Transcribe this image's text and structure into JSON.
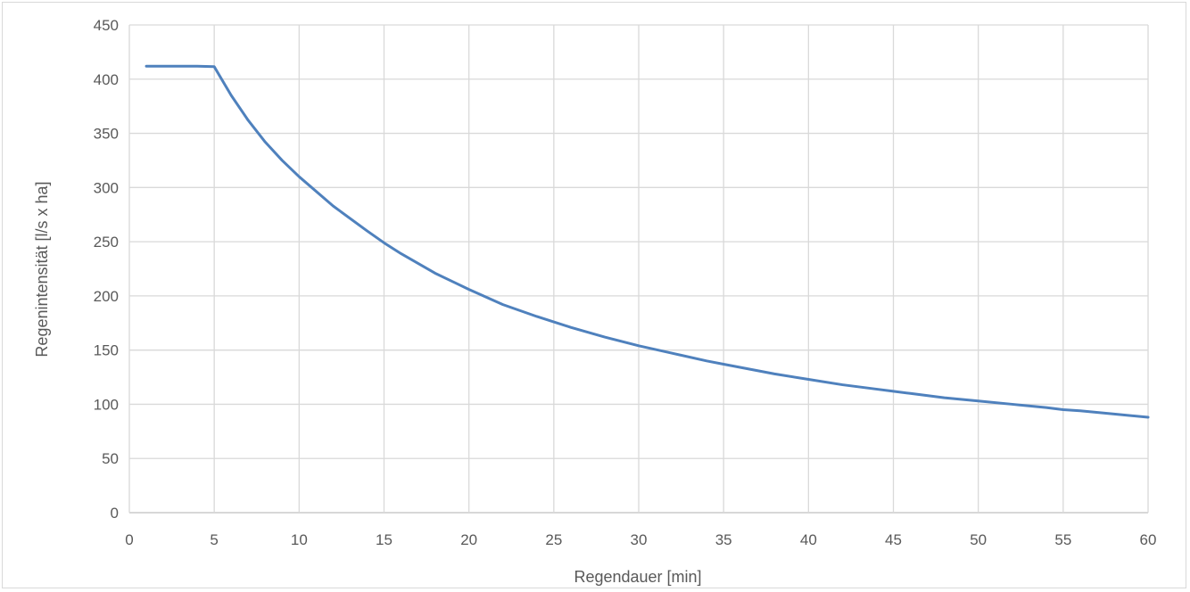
{
  "chart_data": {
    "type": "line",
    "title": "",
    "xlabel": "Regendauer [min]",
    "ylabel": "Regenintensität [l/s x ha]",
    "xlim": [
      0,
      60
    ],
    "ylim": [
      0,
      450
    ],
    "x_ticks": [
      0,
      5,
      10,
      15,
      20,
      25,
      30,
      35,
      40,
      45,
      50,
      55,
      60
    ],
    "y_ticks": [
      0,
      50,
      100,
      150,
      200,
      250,
      300,
      350,
      400,
      450
    ],
    "grid": true,
    "legend": "none",
    "series": [
      {
        "color": "#4f81bd",
        "x": [
          1,
          2,
          3,
          4,
          5,
          6,
          7,
          8,
          9,
          10,
          12,
          14,
          15,
          16,
          18,
          20,
          22,
          24,
          25,
          26,
          28,
          30,
          32,
          34,
          35,
          36,
          38,
          40,
          42,
          44,
          45,
          46,
          48,
          50,
          52,
          54,
          55,
          56,
          58,
          60
        ],
        "y": [
          412,
          412,
          412,
          412,
          411.5,
          385,
          362,
          342,
          325,
          310,
          283,
          260,
          249,
          239,
          221,
          206,
          192,
          181,
          176,
          171,
          162,
          154,
          147,
          140,
          137,
          134,
          128,
          123,
          118,
          114,
          112,
          110,
          106,
          103,
          100,
          97,
          95,
          94,
          91,
          88
        ]
      }
    ]
  }
}
